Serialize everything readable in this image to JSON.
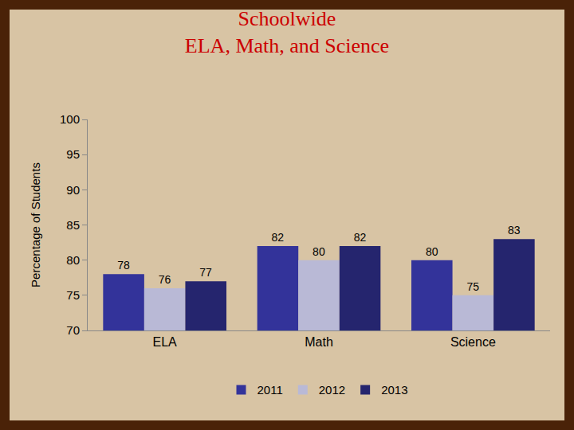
{
  "chart_data": {
    "type": "bar",
    "title": "Schoolwide",
    "subtitle": "ELA, Math, and Science",
    "y_label": "Percentage of Students",
    "categories": [
      "ELA",
      "Math",
      "Science"
    ],
    "series": [
      {
        "name": "2011",
        "color": "#33339a",
        "values": [
          78,
          82,
          80
        ]
      },
      {
        "name": "2012",
        "color": "#b9b9d6",
        "values": [
          76,
          80,
          75
        ]
      },
      {
        "name": "2013",
        "color": "#25256e",
        "values": [
          77,
          82,
          83
        ]
      }
    ],
    "ylim": [
      70,
      100
    ],
    "yticks": [
      70,
      75,
      80,
      85,
      90,
      95,
      100
    ],
    "grid": false,
    "legend": "bottom",
    "data_labels": true
  }
}
